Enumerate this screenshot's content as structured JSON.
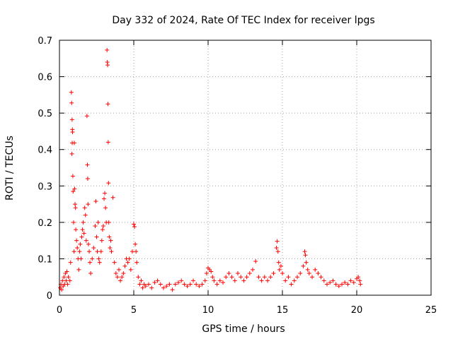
{
  "chart_data": {
    "type": "scatter",
    "title": "Day 332 of 2024, Rate Of TEC Index for receiver lpgs",
    "xlabel": "GPS time / hours",
    "ylabel": "ROTI / TECUs",
    "xlim": [
      0,
      25
    ],
    "ylim": [
      0,
      0.7
    ],
    "xticks": [
      0,
      5,
      10,
      15,
      20,
      25
    ],
    "xtick_labels": [
      "0",
      "5",
      "10",
      "15",
      "20",
      "25"
    ],
    "yticks": [
      0,
      0.1,
      0.2,
      0.3,
      0.4,
      0.5,
      0.6,
      0.7
    ],
    "ytick_labels": [
      "0",
      "0.1",
      "0.2",
      "0.3",
      "0.4",
      "0.5",
      "0.6",
      "0.7"
    ],
    "grid": true,
    "marker": "+",
    "color": "#ff0000",
    "series": [
      {
        "points": [
          [
            0.05,
            0.02
          ],
          [
            0.1,
            0.03
          ],
          [
            0.15,
            0.015
          ],
          [
            0.2,
            0.04
          ],
          [
            0.25,
            0.025
          ],
          [
            0.3,
            0.05
          ],
          [
            0.35,
            0.03
          ],
          [
            0.4,
            0.06
          ],
          [
            0.45,
            0.04
          ],
          [
            0.5,
            0.065
          ],
          [
            0.55,
            0.03
          ],
          [
            0.6,
            0.05
          ],
          [
            0.7,
            0.04
          ],
          [
            0.75,
            0.09
          ],
          [
            0.8,
            0.557
          ],
          [
            0.82,
            0.528
          ],
          [
            0.85,
            0.482
          ],
          [
            0.87,
            0.455
          ],
          [
            0.88,
            0.448
          ],
          [
            0.86,
            0.418
          ],
          [
            0.84,
            0.388
          ],
          [
            0.9,
            0.327
          ],
          [
            0.92,
            0.285
          ],
          [
            0.95,
            0.2
          ],
          [
            0.98,
            0.12
          ],
          [
            1.0,
            0.418
          ],
          [
            1.02,
            0.292
          ],
          [
            1.05,
            0.25
          ],
          [
            1.08,
            0.24
          ],
          [
            1.1,
            0.18
          ],
          [
            1.15,
            0.15
          ],
          [
            1.2,
            0.13
          ],
          [
            1.25,
            0.1
          ],
          [
            1.3,
            0.07
          ],
          [
            1.35,
            0.12
          ],
          [
            1.4,
            0.14
          ],
          [
            1.45,
            0.1
          ],
          [
            1.5,
            0.16
          ],
          [
            1.55,
            0.18
          ],
          [
            1.6,
            0.2
          ],
          [
            1.65,
            0.17
          ],
          [
            1.7,
            0.24
          ],
          [
            1.75,
            0.22
          ],
          [
            1.8,
            0.15
          ],
          [
            1.85,
            0.492
          ],
          [
            1.88,
            0.358
          ],
          [
            1.9,
            0.32
          ],
          [
            1.92,
            0.25
          ],
          [
            1.95,
            0.14
          ],
          [
            2.0,
            0.12
          ],
          [
            2.05,
            0.09
          ],
          [
            2.1,
            0.06
          ],
          [
            2.2,
            0.1
          ],
          [
            2.3,
            0.13
          ],
          [
            2.4,
            0.19
          ],
          [
            2.45,
            0.258
          ],
          [
            2.5,
            0.16
          ],
          [
            2.55,
            0.12
          ],
          [
            2.6,
            0.2
          ],
          [
            2.65,
            0.1
          ],
          [
            2.7,
            0.09
          ],
          [
            2.8,
            0.12
          ],
          [
            2.85,
            0.15
          ],
          [
            2.9,
            0.18
          ],
          [
            2.95,
            0.19
          ],
          [
            3.0,
            0.265
          ],
          [
            3.05,
            0.28
          ],
          [
            3.1,
            0.24
          ],
          [
            3.15,
            0.2
          ],
          [
            3.2,
            0.673
          ],
          [
            3.22,
            0.64
          ],
          [
            3.24,
            0.632
          ],
          [
            3.26,
            0.525
          ],
          [
            3.28,
            0.42
          ],
          [
            3.3,
            0.308
          ],
          [
            3.32,
            0.2
          ],
          [
            3.35,
            0.16
          ],
          [
            3.4,
            0.13
          ],
          [
            3.45,
            0.15
          ],
          [
            3.5,
            0.12
          ],
          [
            3.6,
            0.268
          ],
          [
            3.7,
            0.09
          ],
          [
            3.8,
            0.06
          ],
          [
            3.9,
            0.05
          ],
          [
            4.0,
            0.07
          ],
          [
            4.1,
            0.04
          ],
          [
            4.2,
            0.05
          ],
          [
            4.3,
            0.06
          ],
          [
            4.4,
            0.08
          ],
          [
            4.5,
            0.1
          ],
          [
            4.6,
            0.09
          ],
          [
            4.7,
            0.1
          ],
          [
            4.8,
            0.07
          ],
          [
            4.9,
            0.12
          ],
          [
            5.0,
            0.195
          ],
          [
            5.05,
            0.188
          ],
          [
            5.1,
            0.14
          ],
          [
            5.15,
            0.12
          ],
          [
            5.2,
            0.09
          ],
          [
            5.3,
            0.05
          ],
          [
            5.4,
            0.03
          ],
          [
            5.5,
            0.04
          ],
          [
            5.6,
            0.02
          ],
          [
            5.7,
            0.03
          ],
          [
            5.8,
            0.025
          ],
          [
            6.0,
            0.03
          ],
          [
            6.2,
            0.02
          ],
          [
            6.4,
            0.035
          ],
          [
            6.6,
            0.04
          ],
          [
            6.8,
            0.03
          ],
          [
            7.0,
            0.02
          ],
          [
            7.2,
            0.025
          ],
          [
            7.4,
            0.03
          ],
          [
            7.6,
            0.015
          ],
          [
            7.8,
            0.03
          ],
          [
            8.0,
            0.035
          ],
          [
            8.2,
            0.04
          ],
          [
            8.4,
            0.03
          ],
          [
            8.6,
            0.025
          ],
          [
            8.8,
            0.03
          ],
          [
            9.0,
            0.04
          ],
          [
            9.2,
            0.03
          ],
          [
            9.4,
            0.025
          ],
          [
            9.6,
            0.03
          ],
          [
            9.8,
            0.04
          ],
          [
            9.9,
            0.06
          ],
          [
            10.0,
            0.075
          ],
          [
            10.1,
            0.07
          ],
          [
            10.2,
            0.065
          ],
          [
            10.3,
            0.05
          ],
          [
            10.4,
            0.04
          ],
          [
            10.6,
            0.03
          ],
          [
            10.8,
            0.04
          ],
          [
            11.0,
            0.035
          ],
          [
            11.2,
            0.05
          ],
          [
            11.4,
            0.06
          ],
          [
            11.6,
            0.05
          ],
          [
            11.8,
            0.04
          ],
          [
            12.0,
            0.06
          ],
          [
            12.2,
            0.05
          ],
          [
            12.4,
            0.04
          ],
          [
            12.6,
            0.05
          ],
          [
            12.8,
            0.06
          ],
          [
            13.0,
            0.07
          ],
          [
            13.2,
            0.093
          ],
          [
            13.4,
            0.05
          ],
          [
            13.6,
            0.04
          ],
          [
            13.8,
            0.05
          ],
          [
            14.0,
            0.04
          ],
          [
            14.2,
            0.05
          ],
          [
            14.4,
            0.06
          ],
          [
            14.6,
            0.13
          ],
          [
            14.65,
            0.148
          ],
          [
            14.7,
            0.12
          ],
          [
            14.75,
            0.09
          ],
          [
            14.8,
            0.07
          ],
          [
            14.9,
            0.08
          ],
          [
            15.0,
            0.06
          ],
          [
            15.2,
            0.04
          ],
          [
            15.4,
            0.05
          ],
          [
            15.6,
            0.03
          ],
          [
            15.8,
            0.04
          ],
          [
            16.0,
            0.05
          ],
          [
            16.2,
            0.06
          ],
          [
            16.4,
            0.08
          ],
          [
            16.5,
            0.12
          ],
          [
            16.55,
            0.11
          ],
          [
            16.6,
            0.09
          ],
          [
            16.7,
            0.07
          ],
          [
            16.8,
            0.06
          ],
          [
            17.0,
            0.05
          ],
          [
            17.2,
            0.07
          ],
          [
            17.4,
            0.06
          ],
          [
            17.6,
            0.05
          ],
          [
            17.8,
            0.04
          ],
          [
            18.0,
            0.03
          ],
          [
            18.2,
            0.035
          ],
          [
            18.4,
            0.04
          ],
          [
            18.6,
            0.03
          ],
          [
            18.8,
            0.025
          ],
          [
            19.0,
            0.03
          ],
          [
            19.2,
            0.035
          ],
          [
            19.4,
            0.03
          ],
          [
            19.6,
            0.04
          ],
          [
            19.8,
            0.035
          ],
          [
            20.0,
            0.045
          ],
          [
            20.1,
            0.05
          ],
          [
            20.2,
            0.04
          ],
          [
            20.25,
            0.03
          ]
        ]
      }
    ]
  }
}
